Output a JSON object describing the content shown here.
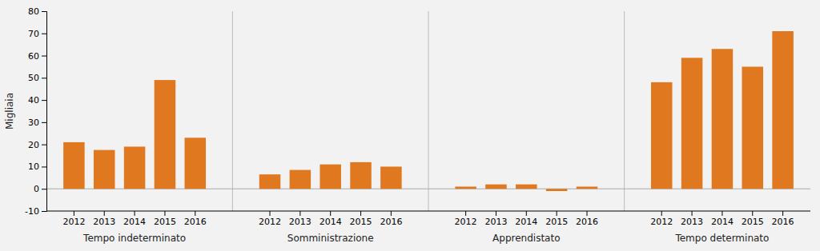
{
  "chart_data": {
    "type": "bar",
    "ylabel": "Migliaia",
    "categories": [
      "2012",
      "2013",
      "2014",
      "2015",
      "2016"
    ],
    "series": [
      {
        "name": "Tempo indeterminato",
        "values": [
          21,
          17.5,
          19,
          49,
          23
        ]
      },
      {
        "name": "Somministrazione",
        "values": [
          6.5,
          8.5,
          11,
          12,
          10
        ]
      },
      {
        "name": "Apprendistato",
        "values": [
          1,
          2,
          2,
          -1,
          1
        ]
      },
      {
        "name": "Tempo determinato",
        "values": [
          48,
          59,
          63,
          55,
          71
        ]
      }
    ],
    "color": "#E07820",
    "ylim": [
      -10,
      80
    ],
    "yticks": [
      -10,
      0,
      10,
      20,
      30,
      40,
      50,
      60,
      70,
      80
    ],
    "grid": false
  }
}
